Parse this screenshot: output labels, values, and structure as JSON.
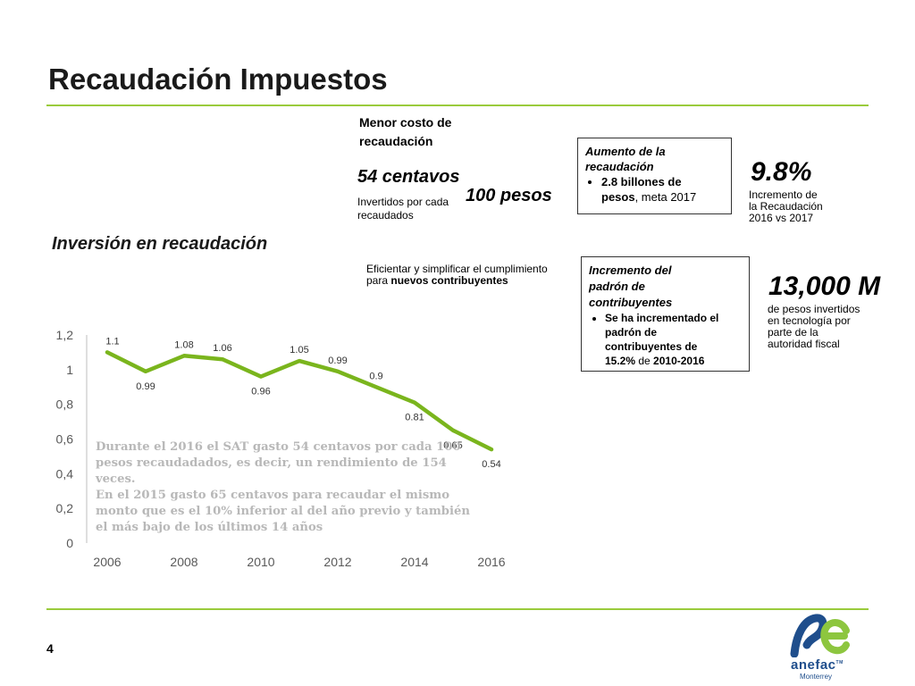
{
  "slide": {
    "title": "Recaudación Impuestos",
    "page_number": "4"
  },
  "section": {
    "heading": "Inversión en recaudación"
  },
  "cost": {
    "heading_line1": "Menor costo de",
    "heading_line2": "recaudación",
    "big_amount": "54 centavos",
    "sub_text": "Invertidos por cada",
    "big_amount2": "100 pesos",
    "sub_text2": "recaudados"
  },
  "efficiency": {
    "line1": "Eficientar y simplificar el cumplimiento",
    "line2_prefix": "para ",
    "line2_bold": "nuevos contribuyentes"
  },
  "box_revenue": {
    "title_line1": "Aumento de la",
    "title_line2": "recaudación",
    "bullet_line1": "2.8 billones de",
    "bullet_bold2": "pesos",
    "bullet_rest2": ", meta 2017"
  },
  "stat_revenue": {
    "value": "9.8%",
    "line1": "Incremento de",
    "line2": "la Recaudación",
    "line3": "2016 vs 2017"
  },
  "box_registry": {
    "title_line1": "Incremento del",
    "title_line2": "padrón de",
    "title_line3": "contribuyentes",
    "bullet_line1": "Se ha incrementado el",
    "bullet_line2": "padrón de",
    "bullet_line3": "contribuyentes de",
    "bullet_bold4a": "15.2%",
    "bullet_mid4": " de ",
    "bullet_bold4b": "2010-2016"
  },
  "stat_investment": {
    "value": "13,000 M",
    "line1": "de pesos invertidos",
    "line2": "en tecnología por",
    "line3": "parte de la",
    "line4": "autoridad fiscal"
  },
  "chart_note": {
    "line1": "Durante el 2016 el SAT gasto 54 centavos por cada 100",
    "line2": "pesos recaudadados, es decir, un rendimiento de 154",
    "line3": "veces.",
    "line4": "En el 2015 gasto 65 centavos para recaudar el mismo",
    "line5": "monto que es el 10% inferior al del año previo y también",
    "line6": "el más bajo de los últimos 14 años"
  },
  "logo": {
    "name": "anefac",
    "tm": "TM",
    "sub": "Monterrey"
  },
  "colors": {
    "line": "#7AB51D",
    "accent": "#9ACB3C",
    "logo_blue": "#1F4E8C",
    "logo_green": "#8DC63F"
  },
  "chart_data": {
    "type": "line",
    "x": [
      2006,
      2007,
      2008,
      2009,
      2010,
      2011,
      2012,
      2013,
      2014,
      2015,
      2016
    ],
    "values": [
      1.1,
      0.99,
      1.08,
      1.06,
      0.96,
      1.05,
      0.99,
      0.9,
      0.81,
      0.65,
      0.54
    ],
    "data_labels": [
      "1.1",
      "0.99",
      "1.08",
      "1.06",
      "0.96",
      "1.05",
      "0.99",
      "0.9",
      "0.81",
      "0.65",
      "0.54"
    ],
    "label_position": [
      "above",
      "below",
      "above",
      "above",
      "below",
      "above",
      "above",
      "above",
      "below",
      "below",
      "below"
    ],
    "ylim": [
      0,
      1.2
    ],
    "y_ticks": [
      0,
      0.2,
      0.4,
      0.6,
      0.8,
      1,
      1.2
    ],
    "y_tick_labels": [
      "0",
      "0,2",
      "0,4",
      "0,6",
      "0,8",
      "1",
      "1,2"
    ],
    "x_ticks": [
      2006,
      2008,
      2010,
      2012,
      2014,
      2016
    ],
    "x_tick_labels": [
      "2006",
      "2008",
      "2010",
      "2012",
      "2014",
      "2016"
    ],
    "title": "",
    "xlabel": "",
    "ylabel": "",
    "grid": false,
    "legend": "none"
  }
}
